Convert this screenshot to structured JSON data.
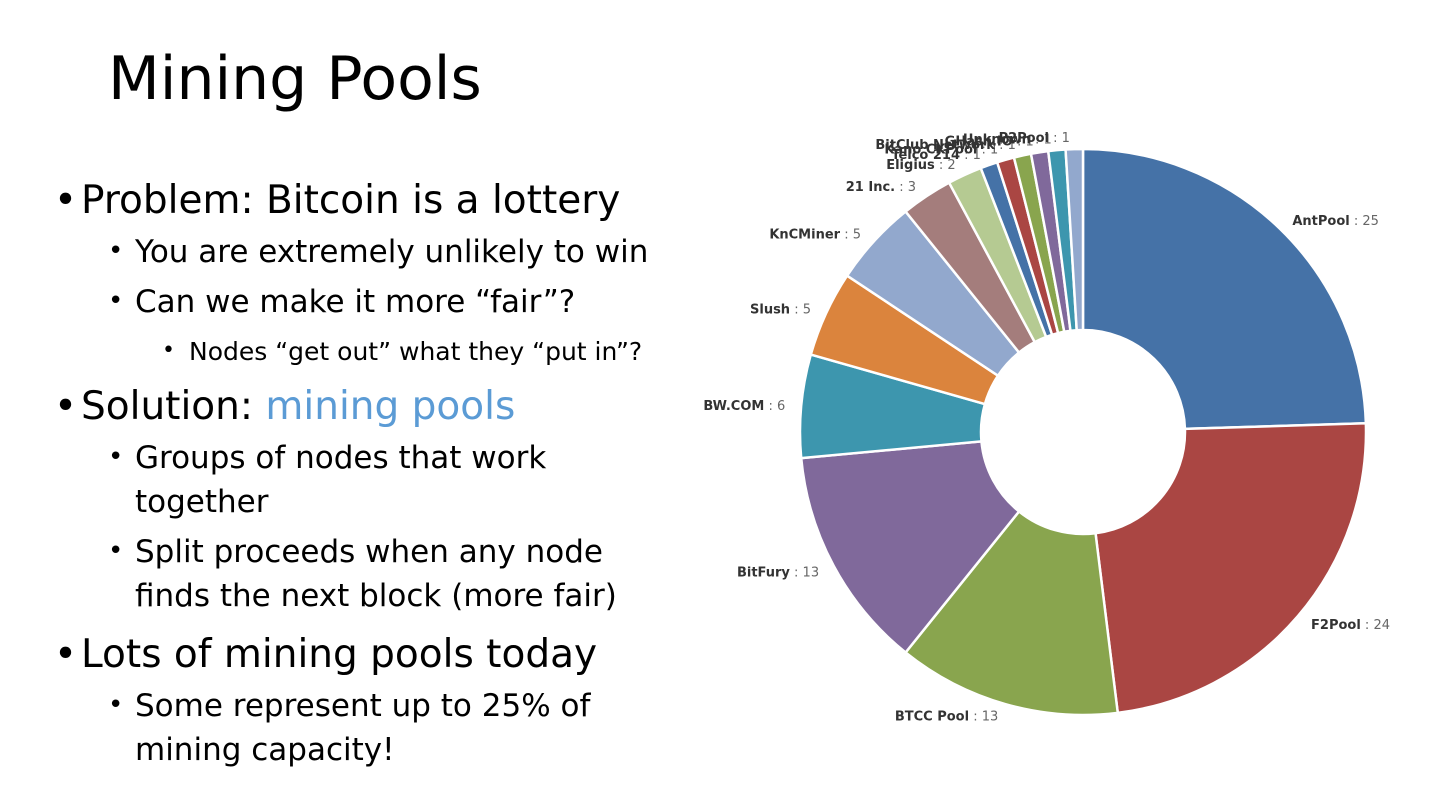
{
  "slide": {
    "title": "Mining Pools",
    "bullets": {
      "b1": "Problem: Bitcoin is a lottery",
      "b1_1": "You are extremely unlikely to win",
      "b1_2": "Can we make it more “fair”?",
      "b1_2_1": "Nodes “get out” what they “put in”?",
      "b2_prefix": "Solution: ",
      "b2_highlight": "mining pools",
      "b2_1_line1": "Groups of nodes that work",
      "b2_1_line2": "together",
      "b2_2_line1": "Split proceeds when any node",
      "b2_2_line2": "finds the next block (more fair)",
      "b3": "Lots of mining pools today",
      "b3_1_line1": "Some represent up to 25% of",
      "b3_1_line2": "mining capacity!"
    },
    "bullet_glyph": "•",
    "highlight_color": "#5b9bd5"
  },
  "chart_data": {
    "type": "pie",
    "title": "",
    "donut": true,
    "label_separator": " : ",
    "slices": [
      {
        "name": "AntPool",
        "value": 25,
        "color": "#4572a7"
      },
      {
        "name": "F2Pool",
        "value": 24,
        "color": "#aa4643"
      },
      {
        "name": "BTCC Pool",
        "value": 13,
        "color": "#89a54e"
      },
      {
        "name": "BitFury",
        "value": 13,
        "color": "#80699b"
      },
      {
        "name": "BW.COM",
        "value": 6,
        "color": "#3d96ae"
      },
      {
        "name": "Slush",
        "value": 5,
        "color": "#db843d"
      },
      {
        "name": "KnCMiner",
        "value": 5,
        "color": "#92a8cd"
      },
      {
        "name": "21 Inc.",
        "value": 3,
        "color": "#a47d7c"
      },
      {
        "name": "Eligius",
        "value": 2,
        "color": "#b5ca92"
      },
      {
        "name": "Telco 214",
        "value": 1,
        "color": "#4572a7"
      },
      {
        "name": "Kano CKPool",
        "value": 1,
        "color": "#aa4643"
      },
      {
        "name": "BitClub Network",
        "value": 1,
        "color": "#89a54e"
      },
      {
        "name": "GHash.IO",
        "value": 1,
        "color": "#80699b"
      },
      {
        "name": "Unknown",
        "value": 1,
        "color": "#3d96ae"
      },
      {
        "name": "P2Pool",
        "value": 1,
        "color": "#92a8cd"
      }
    ]
  }
}
